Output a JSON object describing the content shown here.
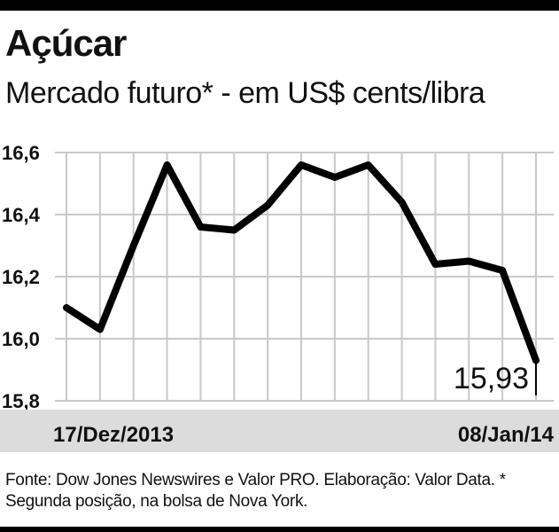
{
  "header": {
    "title": "Açúcar",
    "subtitle": "Mercado futuro* - em US$ cents/libra"
  },
  "chart_data": {
    "type": "line",
    "ylim": [
      15.8,
      16.6
    ],
    "yticks": [
      "16,6",
      "16,4",
      "16,2",
      "16,0",
      "15,8"
    ],
    "ytick_values": [
      16.6,
      16.4,
      16.2,
      16.0,
      15.8
    ],
    "x_start_label": "17/Dez/2013",
    "x_end_label": "08/Jan/14",
    "values": [
      16.1,
      16.03,
      16.3,
      16.56,
      16.36,
      16.35,
      16.43,
      16.56,
      16.52,
      16.56,
      16.44,
      16.24,
      16.25,
      16.22,
      15.93
    ],
    "last_value_label": "15,93",
    "grid": true,
    "line_color": "#000000",
    "grid_color": "#c8c8c8",
    "axis_band_color": "#dcdcdc"
  },
  "footer": {
    "source": "Fonte: Dow Jones Newswires e Valor PRO. Elaboração: Valor Data. * Segunda posição, na bolsa de Nova York."
  }
}
